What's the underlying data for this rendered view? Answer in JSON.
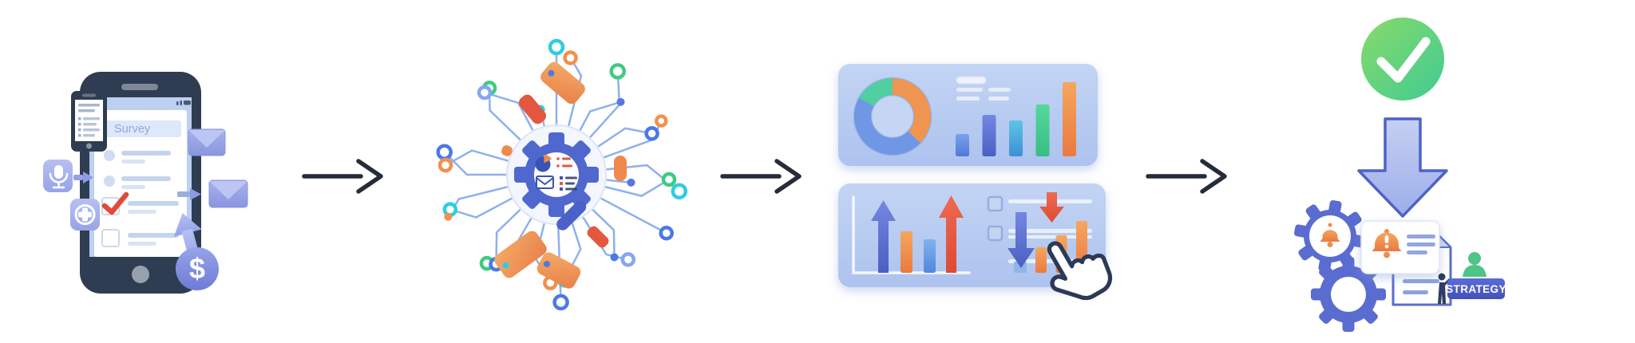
{
  "stage1": {
    "survey_title": "Survey",
    "dollar_glyph": "$",
    "icons": [
      "smartphone",
      "mini-phone",
      "microphone",
      "medical-plus",
      "envelope",
      "envelope",
      "upload-arrow",
      "dollar-coin",
      "checked-checkbox",
      "empty-checkbox"
    ]
  },
  "stage2": {
    "icons": [
      "gear",
      "magnifier",
      "pie-chart",
      "envelope",
      "checklist",
      "price-tag",
      "circuit-node"
    ]
  },
  "stage3": {
    "icons": [
      "donut-chart",
      "bar-chart",
      "trend-up-arrow",
      "trend-down-arrow",
      "checkbox",
      "cursor-hand"
    ]
  },
  "stage4": {
    "badge_label": "STRATEGY",
    "icons": [
      "check-circle",
      "down-arrow",
      "gear",
      "alert-bell",
      "alert-document",
      "report-document",
      "person"
    ]
  },
  "palette": {
    "navy": "#2c3a57",
    "phoneBody": "#2f3d52",
    "screen": "#bcd0f0",
    "trace": "#8fb0ee",
    "blue": "#4c79e6",
    "indigo": "#5b76e0",
    "cyan": "#2fcde4",
    "green": "#3ecb82",
    "lightblue": "#84a7f0",
    "orange": "#f0914e",
    "red": "#e4573f",
    "periwinkle": "#8d9ae4",
    "gearBlue": "#5068ce",
    "connectorDark": "#262d38",
    "donutOrange": "#f0954f",
    "donutBlue": "#6f97e6",
    "donutGreen": "#50cfa0",
    "badgeBlue": "#4b5bc4"
  },
  "chart_data": [
    {
      "type": "pie",
      "donut": true,
      "title": "",
      "labels": [
        "orange-segment",
        "blue-segment",
        "green-segment"
      ],
      "values": [
        37,
        46,
        17
      ],
      "colors": [
        "donutOrange",
        "donutBlue",
        "donutGreen"
      ]
    },
    {
      "type": "bar",
      "title": "",
      "values": [
        28,
        52,
        45,
        65,
        93
      ],
      "colors": [
        "blue",
        "indigo",
        "cyan",
        "green",
        "orange"
      ]
    },
    {
      "type": "bar",
      "title": "",
      "values": [
        52,
        42
      ],
      "colors": [
        "orange",
        "sky"
      ]
    },
    {
      "type": "bar",
      "title": "",
      "values": [
        32,
        47,
        65
      ],
      "colors": [
        "orange",
        "orange",
        "orange"
      ]
    }
  ],
  "network": {
    "nodes": [
      [
        -90,
        38,
        0,
        58,
        "ring",
        "cyan",
        8
      ],
      [
        -76,
        64,
        -45,
        26,
        "ring",
        "orange",
        7
      ],
      [
        -62,
        26,
        45,
        40,
        "dot",
        "indigo",
        5
      ],
      [
        -48,
        54,
        -45,
        42,
        "ring",
        "green",
        8
      ],
      [
        -34,
        40,
        45,
        34,
        "ring",
        "blue",
        7
      ],
      [
        -20,
        64,
        -45,
        26,
        "ring",
        "orange",
        6
      ],
      [
        -6,
        50,
        45,
        52,
        "ring",
        "cyan",
        8
      ],
      [
        6,
        30,
        0,
        0,
        "dot",
        "indigo",
        5
      ],
      [
        14,
        46,
        -45,
        40,
        "ring",
        "green",
        7
      ],
      [
        28,
        58,
        0,
        34,
        "ring",
        "blue",
        7
      ],
      [
        44,
        36,
        45,
        34,
        "dot",
        "blue",
        5
      ],
      [
        58,
        54,
        -45,
        28,
        "ring",
        "lightblue",
        7
      ],
      [
        72,
        34,
        45,
        44,
        "ring",
        "cyan",
        7
      ],
      [
        88,
        56,
        0,
        40,
        "ring",
        "blue",
        8
      ],
      [
        104,
        44,
        -45,
        36,
        "ring",
        "orange",
        7
      ],
      [
        120,
        56,
        45,
        28,
        "ring",
        "green",
        7
      ],
      [
        136,
        40,
        -45,
        40,
        "ring",
        "blue",
        7
      ],
      [
        152,
        50,
        45,
        34,
        "ring",
        "cyan",
        7
      ],
      [
        166,
        62,
        -45,
        26,
        "dot",
        "orange",
        5
      ],
      [
        180,
        48,
        45,
        40,
        "ring",
        "blue",
        8
      ],
      [
        -164,
        46,
        -45,
        38,
        "ring",
        "orange",
        7
      ],
      [
        -136,
        52,
        45,
        28,
        "ring",
        "green",
        7
      ],
      [
        -118,
        38,
        -45,
        44,
        "ring",
        "lightblue",
        7
      ],
      [
        -104,
        20,
        0,
        0,
        "dot",
        "cyan",
        6
      ]
    ],
    "tags": [
      [
        8,
        -115,
        56,
        30,
        40,
        "orange",
        1,
        "blue"
      ],
      [
        -30,
        -82,
        40,
        19,
        50,
        "red",
        0,
        ""
      ],
      [
        80,
        -8,
        16,
        32,
        0,
        "orange2",
        0,
        ""
      ],
      [
        -45,
        100,
        64,
        34,
        -36,
        "orange",
        1,
        "cyan"
      ],
      [
        3,
        120,
        52,
        30,
        28,
        "orange",
        1,
        "blue"
      ],
      [
        52,
        78,
        30,
        15,
        45,
        "red",
        0,
        ""
      ],
      [
        -62,
        -30,
        13,
        13,
        20,
        "orange2",
        0,
        ""
      ]
    ]
  }
}
